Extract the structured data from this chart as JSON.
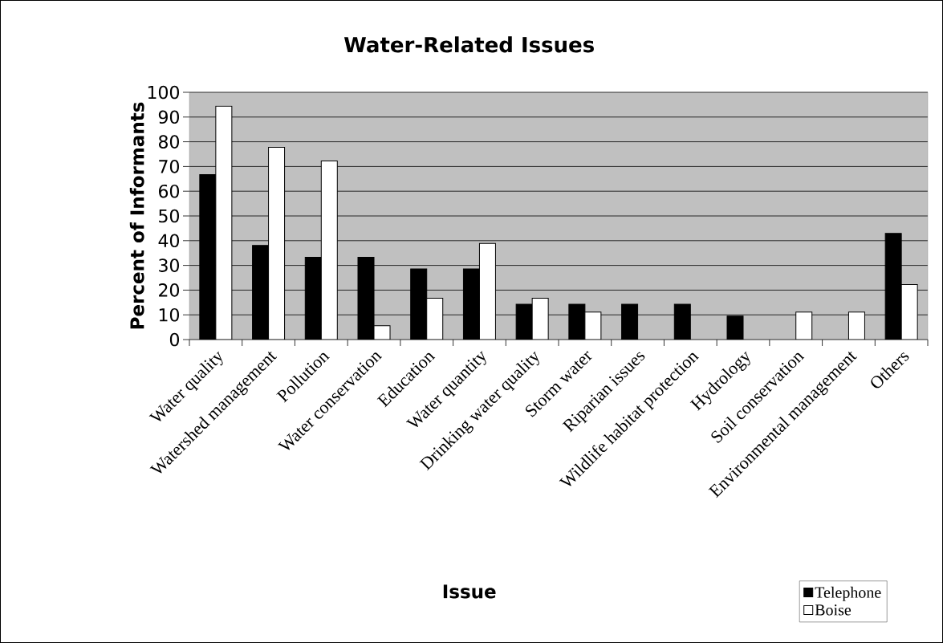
{
  "chart_data": {
    "type": "bar",
    "title": "Water-Related Issues",
    "xlabel": "Issue",
    "ylabel": "Percent of Informants",
    "categories": [
      "Water quality",
      "Watershed management",
      "Pollution",
      "Water conservation",
      "Education",
      "Water quantity",
      "Drinking water quality",
      "Storm water",
      "Riparian issues",
      "Wildlife habitat protection",
      "Hydrology",
      "Soil conservation",
      "Environmental management",
      "Others"
    ],
    "series": [
      {
        "name": "Telephone",
        "color": "#000000",
        "values": [
          66.7,
          38.1,
          33.3,
          33.3,
          28.6,
          28.6,
          14.3,
          14.3,
          14.3,
          14.3,
          9.5,
          null,
          null,
          42.9
        ]
      },
      {
        "name": "Boise",
        "color": "#ffffff",
        "values": [
          94.4,
          77.8,
          72.2,
          5.6,
          16.7,
          38.9,
          16.7,
          11.1,
          null,
          null,
          null,
          11.1,
          11.1,
          22.2
        ]
      }
    ],
    "ylim": [
      0,
      100
    ],
    "yticks": [
      0,
      10,
      20,
      30,
      40,
      50,
      60,
      70,
      80,
      90,
      100
    ],
    "grid": "y",
    "legend": "bottom right"
  }
}
